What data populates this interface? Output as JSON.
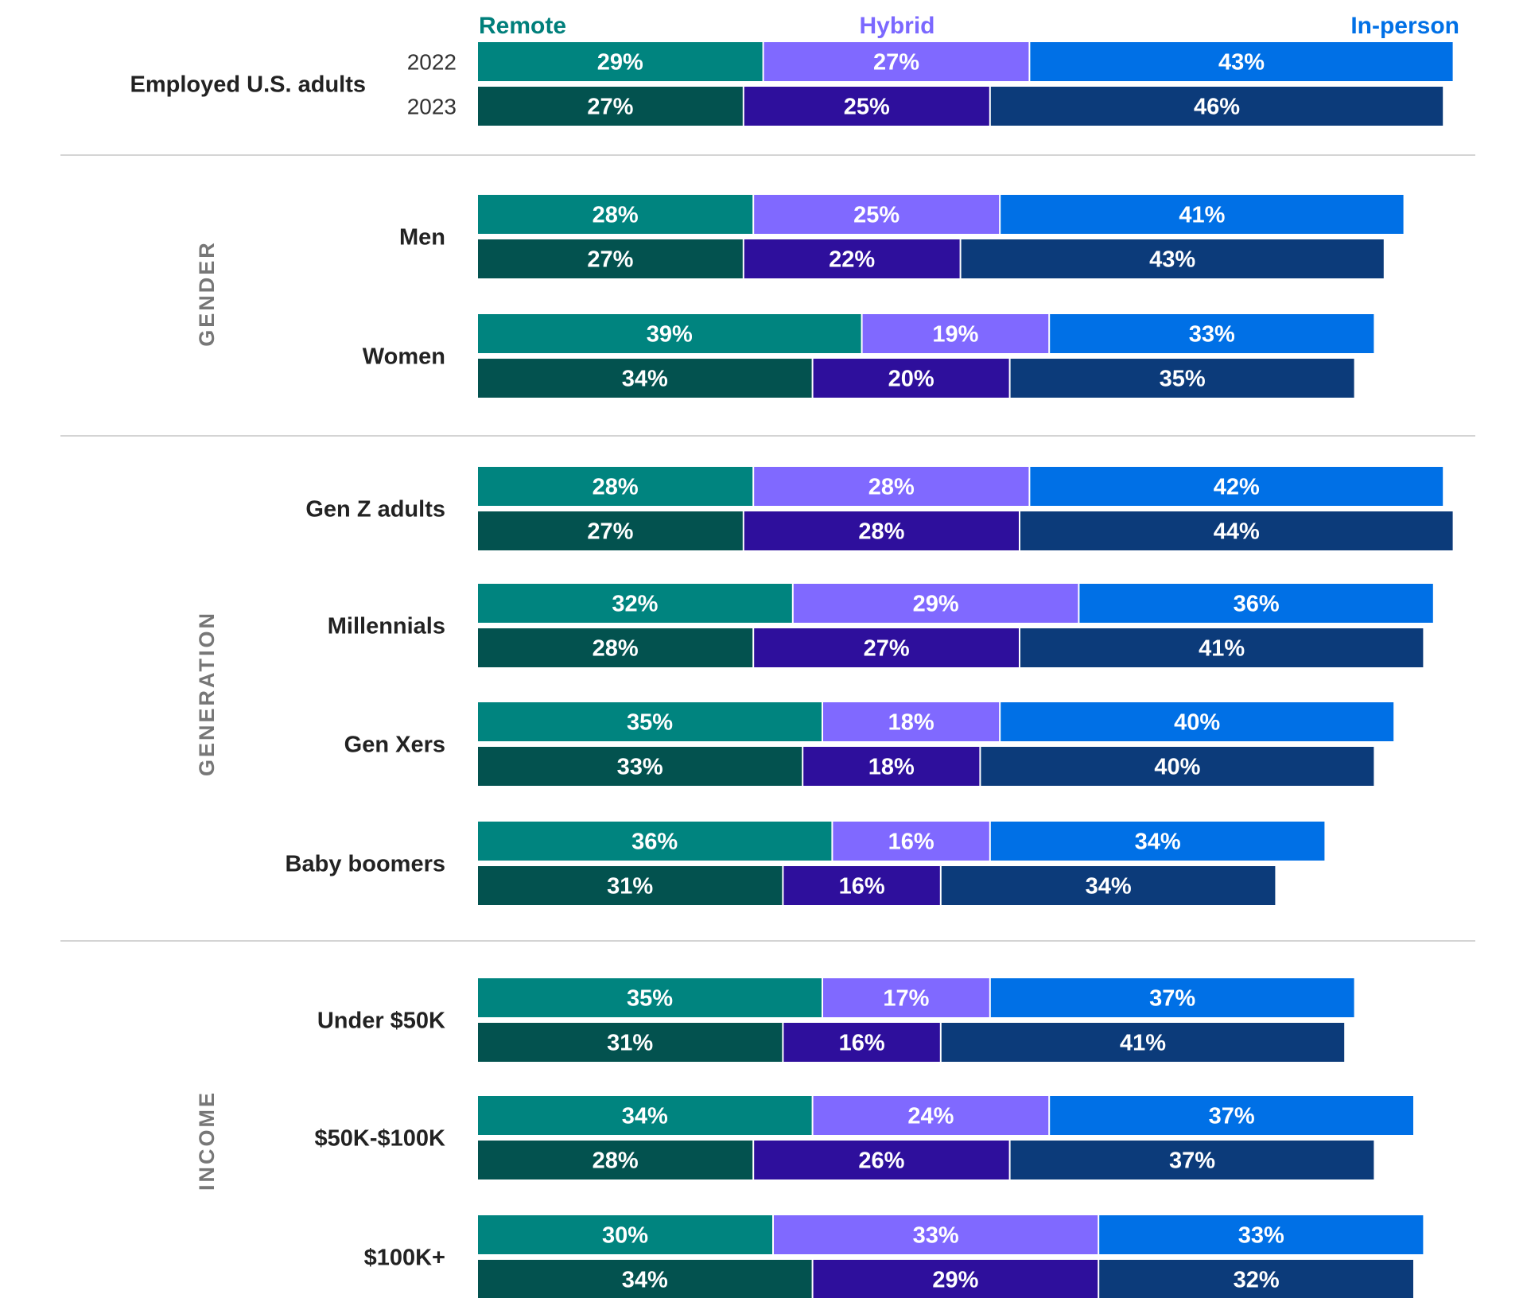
{
  "chart_data": {
    "type": "bar",
    "stacked": true,
    "orientation": "horizontal",
    "legend_placement": "top",
    "legend": [
      {
        "name": "Remote",
        "color": "#007f7b"
      },
      {
        "name": "Hybrid",
        "color": "#7b68ff"
      },
      {
        "name": "In-person",
        "color": "#0070e6"
      }
    ],
    "series_colors": {
      "2022": [
        "#00847f",
        "#8069ff",
        "#0070e6"
      ],
      "2023": [
        "#03524f",
        "#2e0f9c",
        "#0c3b7a"
      ]
    },
    "xlim": [
      0,
      100
    ],
    "groups": [
      {
        "section": "",
        "rows": [
          {
            "label": "Employed U.S. adults",
            "years": [
              "2022",
              "2023"
            ],
            "values": {
              "2022": [
                29,
                27,
                43
              ],
              "2023": [
                27,
                25,
                46
              ]
            }
          }
        ]
      },
      {
        "section": "GENDER",
        "rows": [
          {
            "label": "Men",
            "values": {
              "2022": [
                28,
                25,
                41
              ],
              "2023": [
                27,
                22,
                43
              ]
            }
          },
          {
            "label": "Women",
            "values": {
              "2022": [
                39,
                19,
                33
              ],
              "2023": [
                34,
                20,
                35
              ]
            }
          }
        ]
      },
      {
        "section": "GENERATION",
        "rows": [
          {
            "label": "Gen Z adults",
            "values": {
              "2022": [
                28,
                28,
                42
              ],
              "2023": [
                27,
                28,
                44
              ]
            }
          },
          {
            "label": "Millennials",
            "values": {
              "2022": [
                32,
                29,
                36
              ],
              "2023": [
                28,
                27,
                41
              ]
            }
          },
          {
            "label": "Gen Xers",
            "values": {
              "2022": [
                35,
                18,
                40
              ],
              "2023": [
                33,
                18,
                40
              ]
            }
          },
          {
            "label": "Baby boomers",
            "values": {
              "2022": [
                36,
                16,
                34
              ],
              "2023": [
                31,
                16,
                34
              ]
            }
          }
        ]
      },
      {
        "section": "INCOME",
        "rows": [
          {
            "label": "Under $50K",
            "values": {
              "2022": [
                35,
                17,
                37
              ],
              "2023": [
                31,
                16,
                41
              ]
            }
          },
          {
            "label": "$50K-$100K",
            "values": {
              "2022": [
                34,
                24,
                37
              ],
              "2023": [
                28,
                26,
                37
              ]
            }
          },
          {
            "label": "$100K+",
            "values": {
              "2022": [
                30,
                33,
                33
              ],
              "2023": [
                34,
                29,
                32
              ]
            }
          }
        ]
      }
    ]
  }
}
